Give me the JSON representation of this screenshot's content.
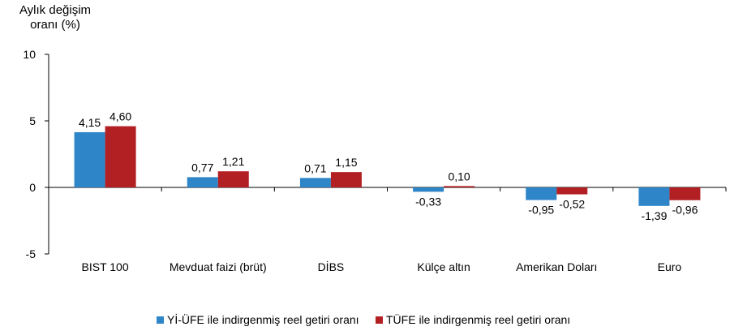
{
  "chart_data": {
    "type": "bar",
    "ylabel": "Aylık değişim oranı (%)",
    "ylim": [
      -5,
      10
    ],
    "yticks": [
      "10",
      "5",
      "0",
      "-5"
    ],
    "ytick_values": [
      10,
      5,
      0,
      -5
    ],
    "categories": [
      "BIST 100",
      "Mevduat faizi (brüt)",
      "DİBS",
      "Külçe altın",
      "Amerikan Doları",
      "Euro"
    ],
    "series": [
      {
        "name": "Yİ-ÜFE ile indirgenmiş reel getiri oranı",
        "color": "#2e86c8",
        "values": [
          4.15,
          0.77,
          0.71,
          -0.33,
          -0.95,
          -1.39
        ],
        "labels": [
          "4,15",
          "0,77",
          "0,71",
          "-0,33",
          "-0,95",
          "-1,39"
        ]
      },
      {
        "name": "TÜFE ile indirgenmiş reel getiri oranı",
        "color": "#b22024",
        "values": [
          4.6,
          1.21,
          1.15,
          0.1,
          -0.52,
          -0.96
        ],
        "labels": [
          "4,60",
          "1,21",
          "1,15",
          "0,10",
          "-0,52",
          "-0,96"
        ]
      }
    ],
    "legend_position": "bottom",
    "grid": false
  }
}
